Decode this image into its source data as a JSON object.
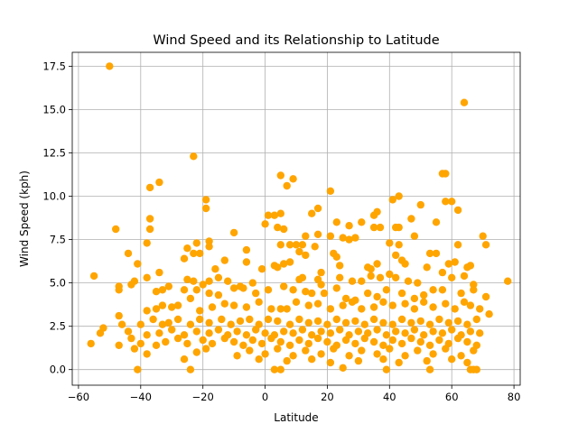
{
  "chart_data": {
    "type": "scatter",
    "title": "Wind Speed and its Relationship to Latitude",
    "xlabel": "Latitude",
    "ylabel": "Wind Speed (kph)",
    "xlim": [
      -62,
      82
    ],
    "ylim": [
      -0.9,
      18.3
    ],
    "xticks": [
      -60,
      -40,
      -20,
      0,
      20,
      40,
      60,
      80
    ],
    "yticks": [
      0.0,
      2.5,
      5.0,
      7.5,
      10.0,
      12.5,
      15.0,
      17.5
    ],
    "xtick_labels": [
      "−60",
      "−40",
      "−20",
      "0",
      "20",
      "40",
      "60",
      "80"
    ],
    "ytick_labels": [
      "0.0",
      "2.5",
      "5.0",
      "7.5",
      "10.0",
      "12.5",
      "15.0",
      "17.5"
    ],
    "grid": true,
    "marker_color": "#ffa500",
    "points": [
      [
        -50,
        17.5
      ],
      [
        64,
        15.4
      ],
      [
        -23,
        12.3
      ],
      [
        57,
        11.3
      ],
      [
        58,
        11.3
      ],
      [
        5,
        11.2
      ],
      [
        9,
        11.0
      ],
      [
        -34,
        10.8
      ],
      [
        7,
        10.6
      ],
      [
        -37,
        10.5
      ],
      [
        21,
        10.3
      ],
      [
        43,
        10.0
      ],
      [
        50,
        9.5
      ],
      [
        58,
        9.7
      ],
      [
        60,
        9.7
      ],
      [
        41,
        9.8
      ],
      [
        -19,
        9.8
      ],
      [
        -19,
        9.3
      ],
      [
        17,
        9.3
      ],
      [
        15,
        9.0
      ],
      [
        36,
        9.1
      ],
      [
        35,
        8.9
      ],
      [
        5,
        9.0
      ],
      [
        3,
        8.9
      ],
      [
        1,
        8.9
      ],
      [
        62,
        9.2
      ],
      [
        -37,
        8.7
      ],
      [
        -48,
        8.1
      ],
      [
        -37,
        8.1
      ],
      [
        0,
        8.4
      ],
      [
        23,
        8.5
      ],
      [
        31,
        8.5
      ],
      [
        35,
        8.2
      ],
      [
        37,
        8.2
      ],
      [
        42,
        8.2
      ],
      [
        43,
        8.2
      ],
      [
        27,
        8.3
      ],
      [
        4,
        8.2
      ],
      [
        6,
        8.1
      ],
      [
        47,
        8.7
      ],
      [
        55,
        8.5
      ],
      [
        17,
        7.8
      ],
      [
        -10,
        7.9
      ],
      [
        13,
        7.7
      ],
      [
        21,
        7.7
      ],
      [
        25,
        7.6
      ],
      [
        27,
        7.5
      ],
      [
        29,
        7.6
      ],
      [
        40,
        7.3
      ],
      [
        43,
        7.2
      ],
      [
        48,
        7.7
      ],
      [
        62,
        7.2
      ],
      [
        70,
        7.7
      ],
      [
        71,
        7.2
      ],
      [
        -38,
        7.3
      ],
      [
        -22,
        7.3
      ],
      [
        -18,
        7.4
      ],
      [
        -18,
        7.1
      ],
      [
        -25,
        7.0
      ],
      [
        -6,
        6.9
      ],
      [
        5,
        7.2
      ],
      [
        8,
        7.2
      ],
      [
        10,
        7.2
      ],
      [
        12,
        7.2
      ],
      [
        11,
        6.8
      ],
      [
        16,
        7.1
      ],
      [
        -44,
        6.7
      ],
      [
        -21,
        6.7
      ],
      [
        -23,
        6.7
      ],
      [
        -13,
        6.3
      ],
      [
        -6,
        6.2
      ],
      [
        3,
        6.0
      ],
      [
        6,
        6.1
      ],
      [
        8,
        6.2
      ],
      [
        13,
        6.6
      ],
      [
        22,
        6.7
      ],
      [
        23,
        6.5
      ],
      [
        24,
        6.0
      ],
      [
        33,
        5.9
      ],
      [
        36,
        6.1
      ],
      [
        34,
        5.4
      ],
      [
        42,
        6.6
      ],
      [
        44,
        6.3
      ],
      [
        45,
        6.1
      ],
      [
        53,
        6.7
      ],
      [
        55,
        6.7
      ],
      [
        59,
        6.1
      ],
      [
        61,
        6.2
      ],
      [
        65,
        5.9
      ],
      [
        66,
        6.0
      ],
      [
        -41,
        6.1
      ],
      [
        -55,
        5.4
      ],
      [
        -34,
        5.6
      ],
      [
        -38,
        5.3
      ],
      [
        -26,
        6.4
      ],
      [
        -25,
        5.2
      ],
      [
        -23,
        5.1
      ],
      [
        -18,
        5.1
      ],
      [
        -16,
        5.8
      ],
      [
        -15,
        5.3
      ],
      [
        -12,
        5.1
      ],
      [
        -20,
        4.9
      ],
      [
        -8,
        4.8
      ],
      [
        -4,
        5.0
      ],
      [
        -1,
        5.8
      ],
      [
        4,
        5.9
      ],
      [
        11,
        5.2
      ],
      [
        12,
        5.3
      ],
      [
        17,
        5.2
      ],
      [
        18,
        5.6
      ],
      [
        18,
        4.9
      ],
      [
        24,
        5.3
      ],
      [
        28,
        5.1
      ],
      [
        31,
        5.1
      ],
      [
        34,
        5.8
      ],
      [
        37,
        5.3
      ],
      [
        40,
        5.5
      ],
      [
        42,
        5.3
      ],
      [
        46,
        5.1
      ],
      [
        49,
        5.0
      ],
      [
        52,
        5.9
      ],
      [
        57,
        5.6
      ],
      [
        60,
        5.3
      ],
      [
        64,
        5.4
      ],
      [
        67,
        4.9
      ],
      [
        78,
        5.1
      ],
      [
        -47,
        4.8
      ],
      [
        -47,
        4.6
      ],
      [
        -42,
        5.1
      ],
      [
        -43,
        4.9
      ],
      [
        -35,
        4.5
      ],
      [
        -33,
        4.6
      ],
      [
        -31,
        4.8
      ],
      [
        -26,
        4.6
      ],
      [
        -22,
        4.6
      ],
      [
        -18,
        4.4
      ],
      [
        -15,
        4.3
      ],
      [
        -10,
        4.7
      ],
      [
        -7,
        4.7
      ],
      [
        -3,
        4.4
      ],
      [
        1,
        4.6
      ],
      [
        6,
        4.8
      ],
      [
        9,
        4.6
      ],
      [
        13,
        4.5
      ],
      [
        15,
        4.4
      ],
      [
        19,
        4.4
      ],
      [
        23,
        4.7
      ],
      [
        26,
        4.1
      ],
      [
        29,
        4.0
      ],
      [
        33,
        4.4
      ],
      [
        36,
        4.2
      ],
      [
        39,
        4.6
      ],
      [
        44,
        4.4
      ],
      [
        48,
        4.1
      ],
      [
        51,
        4.3
      ],
      [
        54,
        4.6
      ],
      [
        57,
        4.6
      ],
      [
        63,
        4.4
      ],
      [
        67,
        4.6
      ],
      [
        71,
        4.2
      ],
      [
        -24,
        4.1
      ],
      [
        -30,
        3.6
      ],
      [
        -33,
        3.7
      ],
      [
        -35,
        3.5
      ],
      [
        -38,
        3.4
      ],
      [
        -47,
        3.1
      ],
      [
        -28,
        3.7
      ],
      [
        -21,
        3.4
      ],
      [
        -17,
        3.6
      ],
      [
        -13,
        3.8
      ],
      [
        -10,
        3.7
      ],
      [
        -6,
        3.6
      ],
      [
        -2,
        3.9
      ],
      [
        2,
        3.5
      ],
      [
        5,
        3.5
      ],
      [
        7,
        3.5
      ],
      [
        10,
        3.9
      ],
      [
        14,
        3.7
      ],
      [
        17,
        3.8
      ],
      [
        21,
        3.5
      ],
      [
        25,
        3.7
      ],
      [
        28,
        3.9
      ],
      [
        31,
        3.5
      ],
      [
        35,
        3.6
      ],
      [
        38,
        3.9
      ],
      [
        41,
        3.7
      ],
      [
        45,
        3.8
      ],
      [
        48,
        3.5
      ],
      [
        51,
        3.9
      ],
      [
        54,
        3.6
      ],
      [
        58,
        3.8
      ],
      [
        61,
        3.5
      ],
      [
        64,
        3.9
      ],
      [
        66,
        3.7
      ],
      [
        69,
        3.5
      ],
      [
        72,
        3.2
      ],
      [
        -40,
        2.6
      ],
      [
        -46,
        2.6
      ],
      [
        -52,
        2.4
      ],
      [
        -53,
        2.1
      ],
      [
        -36,
        2.9
      ],
      [
        -33,
        2.6
      ],
      [
        -31,
        2.7
      ],
      [
        -28,
        2.9
      ],
      [
        -24,
        2.6
      ],
      [
        -21,
        2.9
      ],
      [
        -18,
        2.7
      ],
      [
        -14,
        2.9
      ],
      [
        -11,
        2.6
      ],
      [
        -8,
        2.8
      ],
      [
        -5,
        2.9
      ],
      [
        -2,
        2.6
      ],
      [
        1,
        2.9
      ],
      [
        4,
        2.8
      ],
      [
        8,
        2.6
      ],
      [
        11,
        2.9
      ],
      [
        14,
        2.7
      ],
      [
        17,
        2.8
      ],
      [
        20,
        2.6
      ],
      [
        23,
        2.9
      ],
      [
        26,
        2.7
      ],
      [
        29,
        2.8
      ],
      [
        32,
        2.6
      ],
      [
        35,
        2.9
      ],
      [
        38,
        2.7
      ],
      [
        41,
        2.6
      ],
      [
        44,
        2.9
      ],
      [
        47,
        2.7
      ],
      [
        50,
        2.8
      ],
      [
        53,
        2.6
      ],
      [
        56,
        2.9
      ],
      [
        59,
        2.7
      ],
      [
        62,
        2.8
      ],
      [
        65,
        2.6
      ],
      [
        68,
        2.9
      ],
      [
        -44,
        2.2
      ],
      [
        -38,
        2.0
      ],
      [
        -34,
        2.1
      ],
      [
        -30,
        2.3
      ],
      [
        -26,
        2.0
      ],
      [
        -22,
        2.2
      ],
      [
        -18,
        2.1
      ],
      [
        -15,
        2.3
      ],
      [
        -12,
        2.0
      ],
      [
        -9,
        2.2
      ],
      [
        -6,
        2.0
      ],
      [
        -3,
        2.3
      ],
      [
        0,
        2.1
      ],
      [
        3,
        2.0
      ],
      [
        6,
        2.2
      ],
      [
        9,
        2.1
      ],
      [
        12,
        2.3
      ],
      [
        15,
        2.0
      ],
      [
        18,
        2.2
      ],
      [
        21,
        2.1
      ],
      [
        24,
        2.3
      ],
      [
        27,
        2.0
      ],
      [
        30,
        2.2
      ],
      [
        33,
        2.1
      ],
      [
        36,
        2.3
      ],
      [
        39,
        2.0
      ],
      [
        42,
        2.2
      ],
      [
        45,
        2.1
      ],
      [
        48,
        2.3
      ],
      [
        51,
        2.0
      ],
      [
        54,
        2.2
      ],
      [
        57,
        2.1
      ],
      [
        60,
        2.3
      ],
      [
        63,
        2.0
      ],
      [
        66,
        2.2
      ],
      [
        69,
        2.1
      ],
      [
        -56,
        1.5
      ],
      [
        -47,
        1.4
      ],
      [
        -43,
        1.8
      ],
      [
        -40,
        1.5
      ],
      [
        -35,
        1.4
      ],
      [
        -32,
        1.6
      ],
      [
        -28,
        1.8
      ],
      [
        -25,
        1.5
      ],
      [
        -20,
        1.7
      ],
      [
        -17,
        1.5
      ],
      [
        -13,
        1.8
      ],
      [
        -10,
        1.6
      ],
      [
        -7,
        1.4
      ],
      [
        -4,
        1.7
      ],
      [
        -1,
        1.5
      ],
      [
        2,
        1.8
      ],
      [
        5,
        1.6
      ],
      [
        8,
        1.4
      ],
      [
        11,
        1.7
      ],
      [
        14,
        1.5
      ],
      [
        17,
        1.8
      ],
      [
        20,
        1.6
      ],
      [
        23,
        1.4
      ],
      [
        26,
        1.7
      ],
      [
        29,
        1.5
      ],
      [
        32,
        1.8
      ],
      [
        35,
        1.6
      ],
      [
        38,
        1.4
      ],
      [
        41,
        1.7
      ],
      [
        44,
        1.5
      ],
      [
        47,
        1.8
      ],
      [
        50,
        1.6
      ],
      [
        53,
        1.4
      ],
      [
        56,
        1.7
      ],
      [
        59,
        1.5
      ],
      [
        62,
        1.8
      ],
      [
        65,
        1.6
      ],
      [
        68,
        1.4
      ],
      [
        -42,
        1.2
      ],
      [
        -38,
        0.9
      ],
      [
        -22,
        1.0
      ],
      [
        -19,
        1.2
      ],
      [
        -9,
        0.8
      ],
      [
        -5,
        1.1
      ],
      [
        0,
        0.9
      ],
      [
        4,
        1.2
      ],
      [
        9,
        0.8
      ],
      [
        13,
        1.1
      ],
      [
        18,
        0.9
      ],
      [
        22,
        1.2
      ],
      [
        27,
        0.8
      ],
      [
        31,
        1.1
      ],
      [
        36,
        0.9
      ],
      [
        40,
        1.2
      ],
      [
        45,
        0.8
      ],
      [
        49,
        1.1
      ],
      [
        54,
        0.9
      ],
      [
        58,
        1.2
      ],
      [
        63,
        0.8
      ],
      [
        67,
        1.1
      ],
      [
        -26,
        0.6
      ],
      [
        -2,
        0.6
      ],
      [
        7,
        0.5
      ],
      [
        15,
        0.6
      ],
      [
        21,
        0.4
      ],
      [
        30,
        0.5
      ],
      [
        38,
        0.6
      ],
      [
        43,
        0.4
      ],
      [
        52,
        0.5
      ],
      [
        60,
        0.6
      ],
      [
        65,
        0.4
      ],
      [
        -41,
        0.0
      ],
      [
        -24,
        0.0
      ],
      [
        3,
        0.0
      ],
      [
        5,
        0.0
      ],
      [
        25,
        0.1
      ],
      [
        39,
        0.0
      ],
      [
        53,
        0.0
      ],
      [
        66,
        0.0
      ],
      [
        67,
        0.0
      ],
      [
        68,
        0.0
      ]
    ]
  }
}
